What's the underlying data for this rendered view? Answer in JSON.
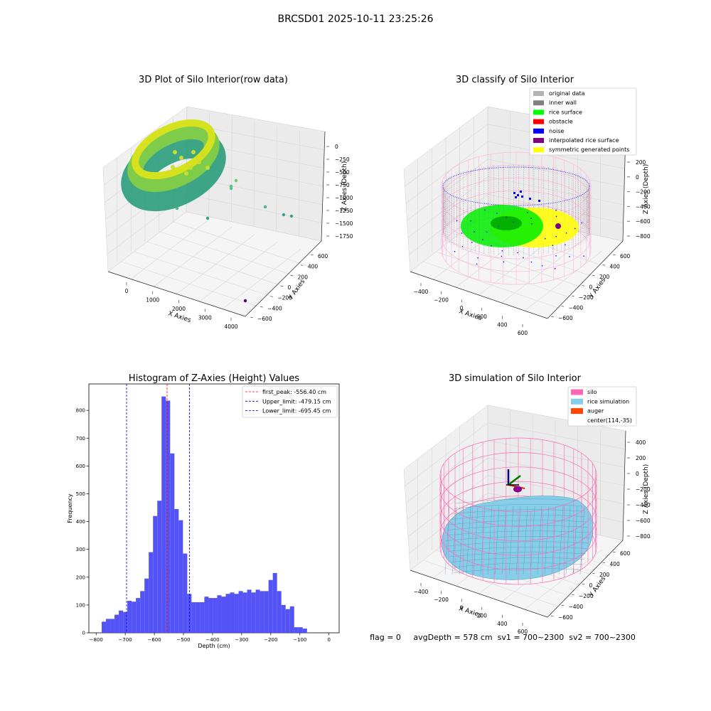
{
  "figure": {
    "suptitle": "BRCSD01 2025-10-11 23:25:26",
    "status_text": "flag = 0     avgDepth = 578 cm  sv1 = 700~2300  sv2 = 700~2300"
  },
  "colors": {
    "hist_bar": "#4b4bf5",
    "peak_line": "#ff0000",
    "limit_line": "#0000cc",
    "pane": "#f0f0f0",
    "grid": "#d6d6d6",
    "silo": "#ff69b4",
    "rice": "#87ceeb",
    "inner_wall": "#888888",
    "rice_surface": "#00ee00",
    "noise": "#0000ff",
    "symmetric": "#ffff00"
  },
  "plot3d_raw": {
    "title": "3D Plot of Silo Interior(row data)",
    "xlabel": "X Axies",
    "ylabel": "Y Axies",
    "zlabel": "Z Axies (Depth)",
    "xticks": [
      "0",
      "1000",
      "2000",
      "3000",
      "4000"
    ],
    "yticks": [
      "600",
      "400",
      "200",
      "0",
      "−200",
      "−400",
      "−600"
    ],
    "zticks": [
      "0",
      "−250",
      "−500",
      "−750",
      "−1000",
      "−1250",
      "−1500",
      "−1750"
    ]
  },
  "plot3d_classify": {
    "title": "3D classify of Silo Interior",
    "xlabel": "X Axies",
    "ylabel": "Y Axies",
    "zlabel": "Z Axies (Depth)",
    "xticks": [
      "−400",
      "−200",
      "0",
      "200",
      "400",
      "600"
    ],
    "yticks": [
      "600",
      "400",
      "200",
      "0",
      "−200",
      "−400",
      "−600"
    ],
    "zticks": [
      "200",
      "0",
      "−200",
      "−400",
      "−600",
      "−800"
    ],
    "legend": [
      {
        "label": "original data",
        "color": "#b3b3b3"
      },
      {
        "label": "inner wall",
        "color": "#808080"
      },
      {
        "label": "rice surface",
        "color": "#00ff00"
      },
      {
        "label": "obstacle",
        "color": "#ff0000"
      },
      {
        "label": "noise",
        "color": "#0000ff"
      },
      {
        "label": "interpolated rice surface",
        "color": "#800080"
      },
      {
        "label": "symmetric generated points",
        "color": "#ffff00"
      }
    ]
  },
  "plot3d_sim": {
    "title": "3D simulation of Silo Interior",
    "xlabel": "X Axies",
    "ylabel": "Y Axies",
    "zlabel": "Z Axies (Depth)",
    "xticks": [
      "−400",
      "−200",
      "0",
      "200",
      "400",
      "600"
    ],
    "yticks": [
      "600",
      "400",
      "200",
      "0",
      "−200",
      "−400",
      "−600"
    ],
    "zticks": [
      "400",
      "200",
      "0",
      "−200",
      "−400",
      "−600",
      "−800"
    ],
    "legend": [
      {
        "label": "silo",
        "color": "#ff69b4"
      },
      {
        "label": "rice simulation",
        "color": "#87ceeb"
      },
      {
        "label": "auger",
        "color": "#ff4500"
      },
      {
        "label": "center(114,-35)",
        "color": ""
      }
    ]
  },
  "chart_data": {
    "type": "bar",
    "title": "Histogram of Z-Axies (Height) Values",
    "xlabel": "Depth (cm)",
    "ylabel": "Frequency",
    "xlim": [
      -825,
      35
    ],
    "ylim": [
      0,
      895
    ],
    "xticks": [
      -800,
      -700,
      -600,
      -500,
      -400,
      -300,
      -200,
      -100,
      0
    ],
    "yticks": [
      0,
      100,
      200,
      300,
      400,
      500,
      600,
      700,
      800
    ],
    "bin_width": 14.7,
    "bins_start": -781,
    "values": [
      40,
      50,
      50,
      65,
      80,
      75,
      115,
      112,
      125,
      150,
      195,
      290,
      420,
      475,
      850,
      835,
      645,
      445,
      405,
      285,
      140,
      110,
      110,
      110,
      130,
      125,
      125,
      135,
      130,
      140,
      145,
      140,
      150,
      145,
      155,
      145,
      155,
      150,
      150,
      190,
      215,
      150,
      100,
      85,
      95,
      20,
      20,
      15
    ],
    "vlines": [
      {
        "label": "first_peak: -556.40 cm",
        "x": -556.4,
        "color": "#ff0000"
      },
      {
        "label": "Upper_limit: -479.15 cm",
        "x": -479.15,
        "color": "#0000cc"
      },
      {
        "label": "Lower_limit: -695.45 cm",
        "x": -695.45,
        "color": "#0000cc"
      }
    ],
    "legend_position": "upper-right"
  }
}
